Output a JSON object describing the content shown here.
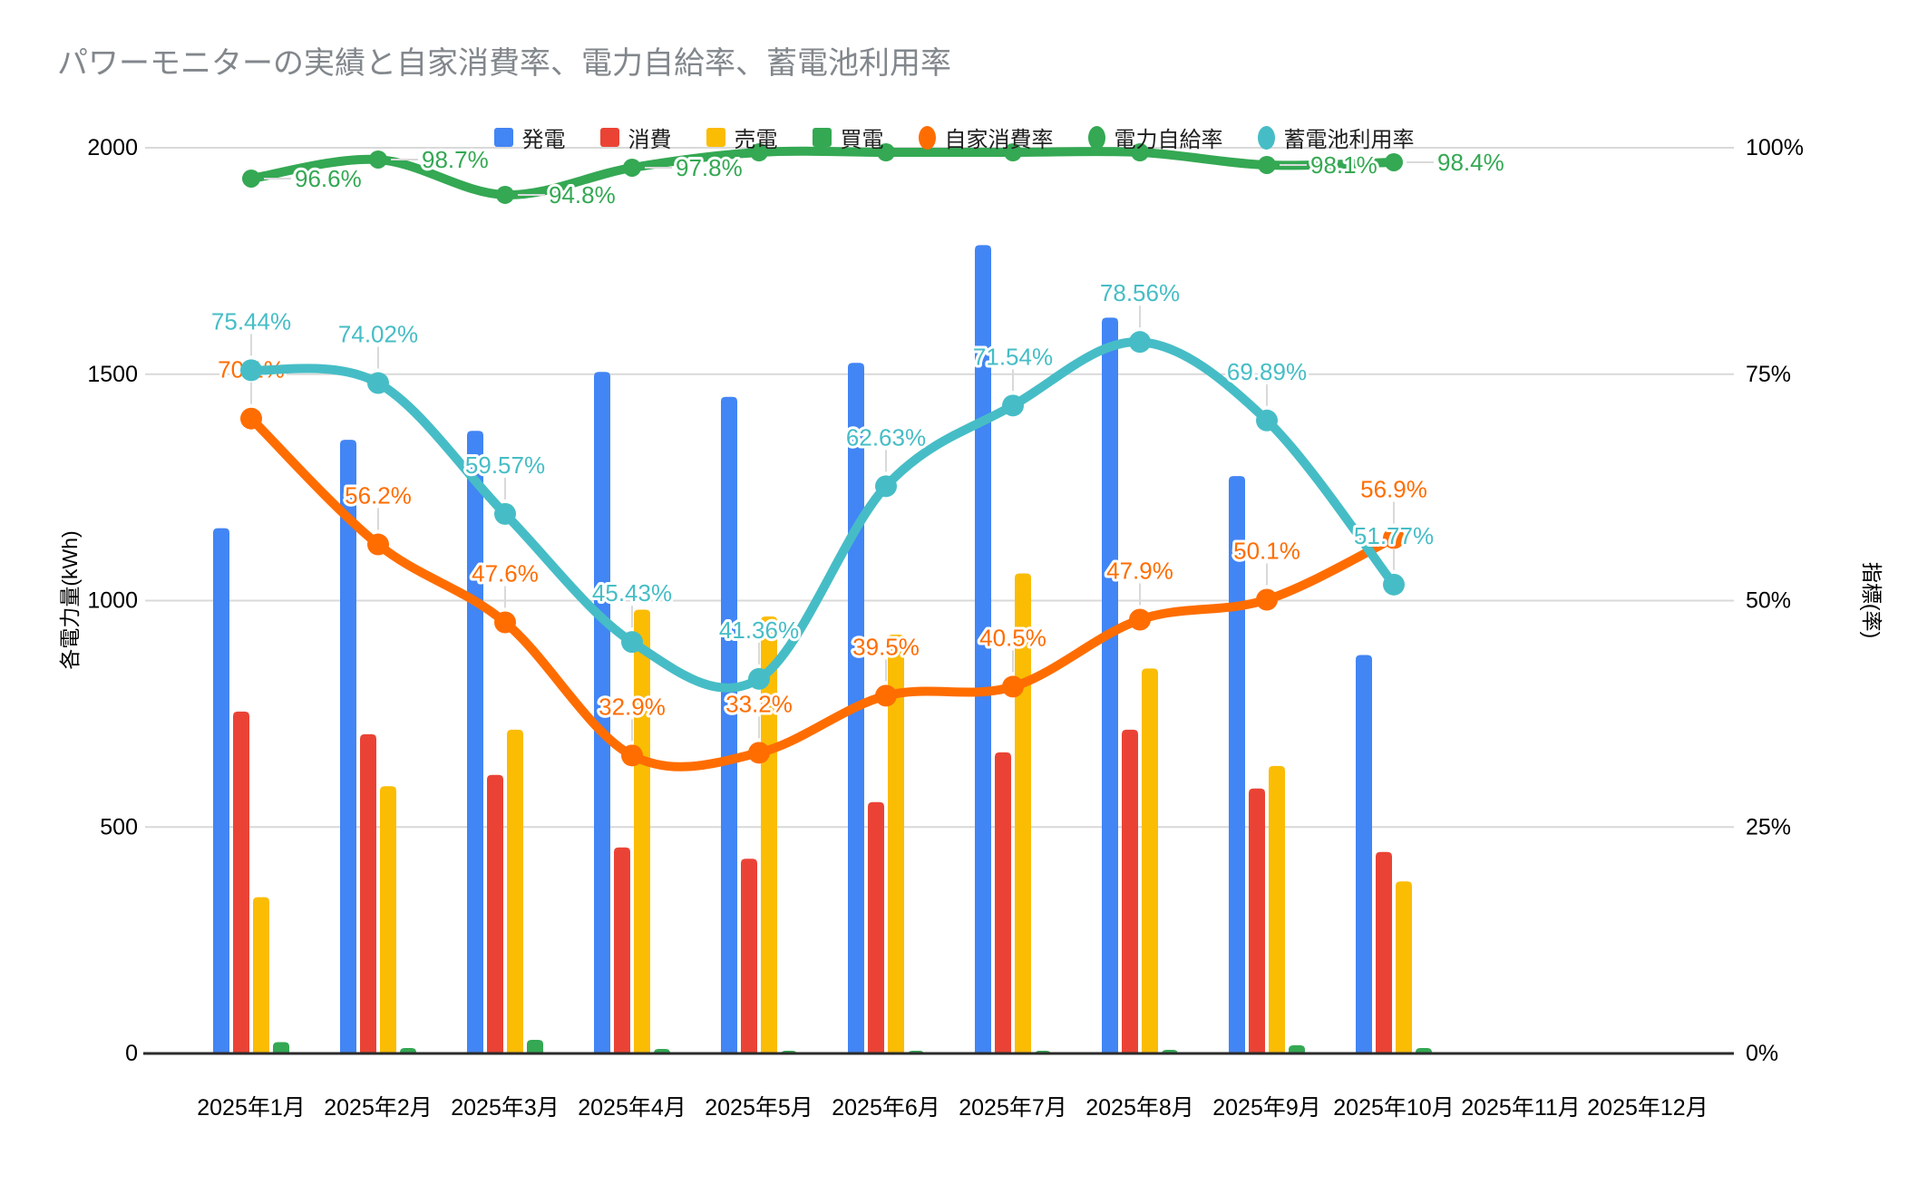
{
  "title": "パワーモニターの実績と自家消費率、電力自給率、蓄電池利用率",
  "colors": {
    "generation": "#4285F4",
    "consumption": "#EA4335",
    "sold": "#FBBC04",
    "purchased": "#34A853",
    "self_consumption_rate": "#FF6D01",
    "self_sufficiency_rate": "#34A853",
    "battery_utilization_rate": "#46BDC6",
    "grid": "#d9d9d9",
    "axis_line": "#2b2b2b",
    "title_text": "#82878c"
  },
  "legend": [
    {
      "key": "generation",
      "label": "発電",
      "marker": "square",
      "color": "#4285F4"
    },
    {
      "key": "consumption",
      "label": "消費",
      "marker": "square",
      "color": "#EA4335"
    },
    {
      "key": "sold",
      "label": "売電",
      "marker": "square",
      "color": "#FBBC04"
    },
    {
      "key": "purchased",
      "label": "買電",
      "marker": "square",
      "color": "#34A853"
    },
    {
      "key": "self-consumption-rate",
      "label": "自家消費率",
      "marker": "oval",
      "color": "#FF6D01"
    },
    {
      "key": "self-sufficiency-rate",
      "label": "電力自給率",
      "marker": "oval",
      "color": "#34A853"
    },
    {
      "key": "battery-utilization-rate",
      "label": "蓄電池利用率",
      "marker": "oval",
      "color": "#46BDC6"
    }
  ],
  "chart_data": {
    "type": "combo-bar-line",
    "categories": [
      "2025年1月",
      "2025年2月",
      "2025年3月",
      "2025年4月",
      "2025年5月",
      "2025年6月",
      "2025年7月",
      "2025年8月",
      "2025年9月",
      "2025年10月",
      "2025年11月",
      "2025年12月"
    ],
    "left_axis": {
      "label": "各電力量(kWh)",
      "range": [
        0,
        2000
      ],
      "tick_values": [
        0,
        500,
        1000,
        1500,
        2000
      ],
      "tick_labels": [
        "0",
        "500",
        "1000",
        "1500",
        "2000"
      ]
    },
    "right_axis": {
      "label": "指標(率)",
      "range": [
        0,
        100
      ],
      "tick_values": [
        0,
        25,
        50,
        75,
        100
      ],
      "tick_labels": [
        "0%",
        "25%",
        "50%",
        "75%",
        "100%"
      ]
    },
    "grid": true,
    "legend_position": "top",
    "bar_series": [
      {
        "key": "generation",
        "name": "発電",
        "color": "#4285F4",
        "values": [
          1160,
          1355,
          1375,
          1505,
          1450,
          1525,
          1785,
          1625,
          1275,
          880,
          null,
          null
        ]
      },
      {
        "key": "consumption",
        "name": "消費",
        "color": "#EA4335",
        "values": [
          755,
          705,
          615,
          455,
          430,
          555,
          665,
          715,
          585,
          445,
          null,
          null
        ]
      },
      {
        "key": "sold",
        "name": "売電",
        "color": "#FBBC04",
        "values": [
          345,
          590,
          715,
          980,
          965,
          925,
          1060,
          850,
          635,
          380,
          null,
          null
        ]
      },
      {
        "key": "purchased",
        "name": "買電",
        "color": "#34A853",
        "values": [
          25,
          12,
          30,
          10,
          6,
          6,
          6,
          8,
          18,
          12,
          null,
          null
        ]
      }
    ],
    "line_series": [
      {
        "key": "self-consumption-rate",
        "name": "自家消費率",
        "color": "#FF6D01",
        "label_style": "above",
        "values": [
          70.1,
          56.2,
          47.6,
          32.9,
          33.2,
          39.5,
          40.5,
          47.9,
          50.1,
          56.9,
          null,
          null
        ],
        "labels": [
          "70.1%",
          "56.2%",
          "47.6%",
          "32.9%",
          "33.2%",
          "39.5%",
          "40.5%",
          "47.9%",
          "50.1%",
          "56.9%",
          "",
          ""
        ]
      },
      {
        "key": "battery-utilization-rate",
        "name": "蓄電池利用率",
        "color": "#46BDC6",
        "label_style": "above",
        "values": [
          75.44,
          74.02,
          59.57,
          45.43,
          41.36,
          62.63,
          71.54,
          78.56,
          69.89,
          51.77,
          null,
          null
        ],
        "labels": [
          "75.44%",
          "74.02%",
          "59.57%",
          "45.43%",
          "41.36%",
          "62.63%",
          "71.54%",
          "78.56%",
          "69.89%",
          "51.77%",
          "",
          ""
        ]
      },
      {
        "key": "self-sufficiency-rate",
        "name": "電力自給率",
        "color": "#34A853",
        "label_style": "right",
        "values": [
          96.6,
          98.7,
          94.8,
          97.8,
          99.5,
          99.5,
          99.5,
          99.5,
          98.1,
          98.4,
          null,
          null
        ],
        "labels": [
          "96.6%",
          "98.7%",
          "94.8%",
          "97.8%",
          "",
          "",
          "",
          "",
          "98.1%",
          "98.4%",
          "",
          ""
        ]
      }
    ]
  }
}
